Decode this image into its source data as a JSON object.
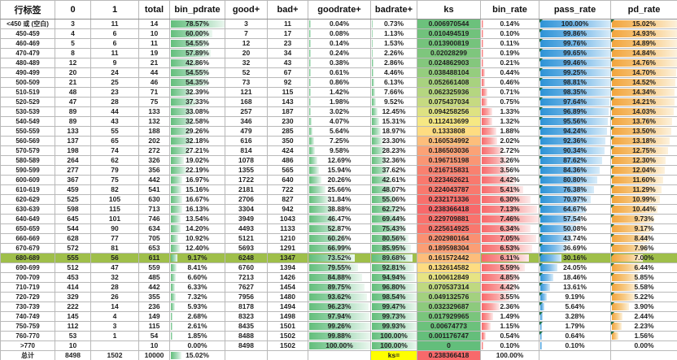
{
  "table": {
    "columns": [
      {
        "key": "row-label",
        "label": "行标签"
      },
      {
        "key": "col-0",
        "label": "0"
      },
      {
        "key": "col-1",
        "label": "1"
      },
      {
        "key": "total",
        "label": "total"
      },
      {
        "key": "bin-pdrate",
        "label": "bin_pdrate"
      },
      {
        "key": "good-plus",
        "label": "good+"
      },
      {
        "key": "bad-plus",
        "label": "bad+"
      },
      {
        "key": "goodrate-plus",
        "label": "goodrate+"
      },
      {
        "key": "badrate-plus",
        "label": "badrate+"
      },
      {
        "key": "ks",
        "label": "ks"
      },
      {
        "key": "bin-rate",
        "label": "bin_rate"
      },
      {
        "key": "pass-rate",
        "label": "pass_rate"
      },
      {
        "key": "pd-rate",
        "label": "pd_rate"
      }
    ],
    "rows": [
      [
        "<450 或 (空白)",
        "3",
        "11",
        "14",
        "78.57%",
        "3",
        "11",
        "0.04%",
        "0.73%",
        "0.006970544",
        "0.14%",
        "100.00%",
        "15.02%"
      ],
      [
        "450-459",
        "4",
        "6",
        "10",
        "60.00%",
        "7",
        "17",
        "0.08%",
        "1.13%",
        "0.010494519",
        "0.10%",
        "99.86%",
        "14.93%"
      ],
      [
        "460-469",
        "5",
        "6",
        "11",
        "54.55%",
        "12",
        "23",
        "0.14%",
        "1.53%",
        "0.013900819",
        "0.11%",
        "99.76%",
        "14.89%"
      ],
      [
        "470-479",
        "8",
        "11",
        "19",
        "57.89%",
        "20",
        "34",
        "0.24%",
        "2.26%",
        "0.02028299",
        "0.19%",
        "99.65%",
        "14.84%"
      ],
      [
        "480-489",
        "12",
        "9",
        "21",
        "42.86%",
        "32",
        "43",
        "0.38%",
        "2.86%",
        "0.024862903",
        "0.21%",
        "99.46%",
        "14.76%"
      ],
      [
        "490-499",
        "20",
        "24",
        "44",
        "54.55%",
        "52",
        "67",
        "0.61%",
        "4.46%",
        "0.038488104",
        "0.44%",
        "99.25%",
        "14.70%"
      ],
      [
        "500-509",
        "21",
        "25",
        "46",
        "54.35%",
        "73",
        "92",
        "0.86%",
        "6.13%",
        "0.052661408",
        "0.46%",
        "98.81%",
        "14.52%"
      ],
      [
        "510-519",
        "48",
        "23",
        "71",
        "32.39%",
        "121",
        "115",
        "1.42%",
        "7.66%",
        "0.062325936",
        "0.71%",
        "98.35%",
        "14.34%"
      ],
      [
        "520-529",
        "47",
        "28",
        "75",
        "37.33%",
        "168",
        "143",
        "1.98%",
        "9.52%",
        "0.075437034",
        "0.75%",
        "97.64%",
        "14.21%"
      ],
      [
        "530-539",
        "89",
        "44",
        "133",
        "33.08%",
        "257",
        "187",
        "3.02%",
        "12.45%",
        "0.094258256",
        "1.33%",
        "96.89%",
        "14.03%"
      ],
      [
        "540-549",
        "89",
        "43",
        "132",
        "32.58%",
        "346",
        "230",
        "4.07%",
        "15.31%",
        "0.112413699",
        "1.32%",
        "95.56%",
        "13.76%"
      ],
      [
        "550-559",
        "133",
        "55",
        "188",
        "29.26%",
        "479",
        "285",
        "5.64%",
        "18.97%",
        "0.1333808",
        "1.88%",
        "94.24%",
        "13.50%"
      ],
      [
        "560-569",
        "137",
        "65",
        "202",
        "32.18%",
        "616",
        "350",
        "7.25%",
        "23.30%",
        "0.160534992",
        "2.02%",
        "92.36%",
        "13.18%"
      ],
      [
        "570-579",
        "198",
        "74",
        "272",
        "27.21%",
        "814",
        "424",
        "9.58%",
        "28.23%",
        "0.186503036",
        "2.72%",
        "90.34%",
        "12.75%"
      ],
      [
        "580-589",
        "264",
        "62",
        "326",
        "19.02%",
        "1078",
        "486",
        "12.69%",
        "32.36%",
        "0.196715198",
        "3.26%",
        "87.62%",
        "12.30%"
      ],
      [
        "590-599",
        "277",
        "79",
        "356",
        "22.19%",
        "1355",
        "565",
        "15.94%",
        "37.62%",
        "0.216715831",
        "3.56%",
        "84.36%",
        "12.04%"
      ],
      [
        "600-609",
        "367",
        "75",
        "442",
        "16.97%",
        "1722",
        "640",
        "20.26%",
        "42.61%",
        "0.223462621",
        "4.42%",
        "80.80%",
        "11.60%"
      ],
      [
        "610-619",
        "459",
        "82",
        "541",
        "15.16%",
        "2181",
        "722",
        "25.66%",
        "48.07%",
        "0.224043787",
        "5.41%",
        "76.38%",
        "11.29%"
      ],
      [
        "620-629",
        "525",
        "105",
        "630",
        "16.67%",
        "2706",
        "827",
        "31.84%",
        "55.06%",
        "0.232171336",
        "6.30%",
        "70.97%",
        "10.99%"
      ],
      [
        "630-639",
        "598",
        "115",
        "713",
        "16.13%",
        "3304",
        "942",
        "38.88%",
        "62.72%",
        "0.238366418",
        "7.13%",
        "64.67%",
        "10.44%"
      ],
      [
        "640-649",
        "645",
        "101",
        "746",
        "13.54%",
        "3949",
        "1043",
        "46.47%",
        "69.44%",
        "0.229709881",
        "7.46%",
        "57.54%",
        "9.73%"
      ],
      [
        "650-659",
        "544",
        "90",
        "634",
        "14.20%",
        "4493",
        "1133",
        "52.87%",
        "75.43%",
        "0.225614925",
        "6.34%",
        "50.08%",
        "9.17%"
      ],
      [
        "660-669",
        "628",
        "77",
        "705",
        "10.92%",
        "5121",
        "1210",
        "60.26%",
        "80.56%",
        "0.202980164",
        "7.05%",
        "43.74%",
        "8.44%"
      ],
      [
        "670-679",
        "572",
        "81",
        "653",
        "12.40%",
        "5693",
        "1291",
        "66.99%",
        "85.95%",
        "0.189598304",
        "6.53%",
        "36.69%",
        "7.96%"
      ],
      [
        "680-689",
        "555",
        "56",
        "611",
        "9.17%",
        "6248",
        "1347",
        "73.52%",
        "89.68%",
        "0.161572442",
        "6.11%",
        "30.16%",
        "7.00%"
      ],
      [
        "690-699",
        "512",
        "47",
        "559",
        "8.41%",
        "6760",
        "1394",
        "79.55%",
        "92.81%",
        "0.132614582",
        "5.59%",
        "24.05%",
        "6.44%"
      ],
      [
        "700-709",
        "453",
        "32",
        "485",
        "6.60%",
        "7213",
        "1426",
        "84.88%",
        "94.94%",
        "0.100612849",
        "4.85%",
        "18.46%",
        "5.85%"
      ],
      [
        "710-719",
        "414",
        "28",
        "442",
        "6.33%",
        "7627",
        "1454",
        "89.75%",
        "96.80%",
        "0.070537314",
        "4.42%",
        "13.61%",
        "5.58%"
      ],
      [
        "720-729",
        "329",
        "26",
        "355",
        "7.32%",
        "7956",
        "1480",
        "93.62%",
        "98.54%",
        "0.049132576",
        "3.55%",
        "9.19%",
        "5.22%"
      ],
      [
        "730-739",
        "222",
        "14",
        "236",
        "5.93%",
        "8178",
        "1494",
        "96.23%",
        "99.47%",
        "0.032329687",
        "2.36%",
        "5.64%",
        "3.90%"
      ],
      [
        "740-749",
        "145",
        "4",
        "149",
        "2.68%",
        "8323",
        "1498",
        "97.94%",
        "99.73%",
        "0.017929965",
        "1.49%",
        "3.28%",
        "2.44%"
      ],
      [
        "750-759",
        "112",
        "3",
        "115",
        "2.61%",
        "8435",
        "1501",
        "99.26%",
        "99.93%",
        "0.00674773",
        "1.15%",
        "1.79%",
        "2.23%"
      ],
      [
        "760-770",
        "53",
        "1",
        "54",
        "1.85%",
        "8488",
        "1502",
        "99.88%",
        "100.00%",
        "0.001176747",
        "0.54%",
        "0.64%",
        "1.56%"
      ],
      [
        ">770",
        "10",
        "",
        "10",
        "0.00%",
        "8498",
        "1502",
        "100.00%",
        "100.00%",
        "0",
        "0.10%",
        "0.10%",
        "0.00%"
      ]
    ],
    "total_row": [
      "总计",
      "8498",
      "1502",
      "10000",
      "15.02%",
      "",
      "",
      "",
      "ks=",
      "0.238366418",
      "100.00%",
      "",
      ""
    ],
    "highlight_row_index": 24,
    "ks_column_index": 9,
    "ks_scale": {
      "min": 0,
      "max": 0.238366418,
      "min_color": "#63be7b",
      "mid_color": "#ffeb84",
      "max_color": "#f8696b"
    },
    "bar_columns": {
      "4": {
        "max": 78.57,
        "style": "green"
      },
      "7": {
        "max": 100,
        "style": "green"
      },
      "8": {
        "max": 100,
        "style": "green"
      },
      "10": {
        "max": 7.46,
        "style": "red"
      },
      "11": {
        "max": 100,
        "style": "blue"
      },
      "12": {
        "max": 15.02,
        "style": "gold"
      }
    },
    "flag_columns": [
      11,
      12
    ],
    "colors": {
      "highlight_row": "#9fbf4a",
      "ks_label_bg": "#ffff00",
      "flag": "#217346",
      "grid": "#b9b9b9",
      "bar_green": "#63be7b",
      "bar_red": "#f8696b",
      "bar_blue": "#2d93d6",
      "bar_gold": "#f2a43c"
    }
  }
}
